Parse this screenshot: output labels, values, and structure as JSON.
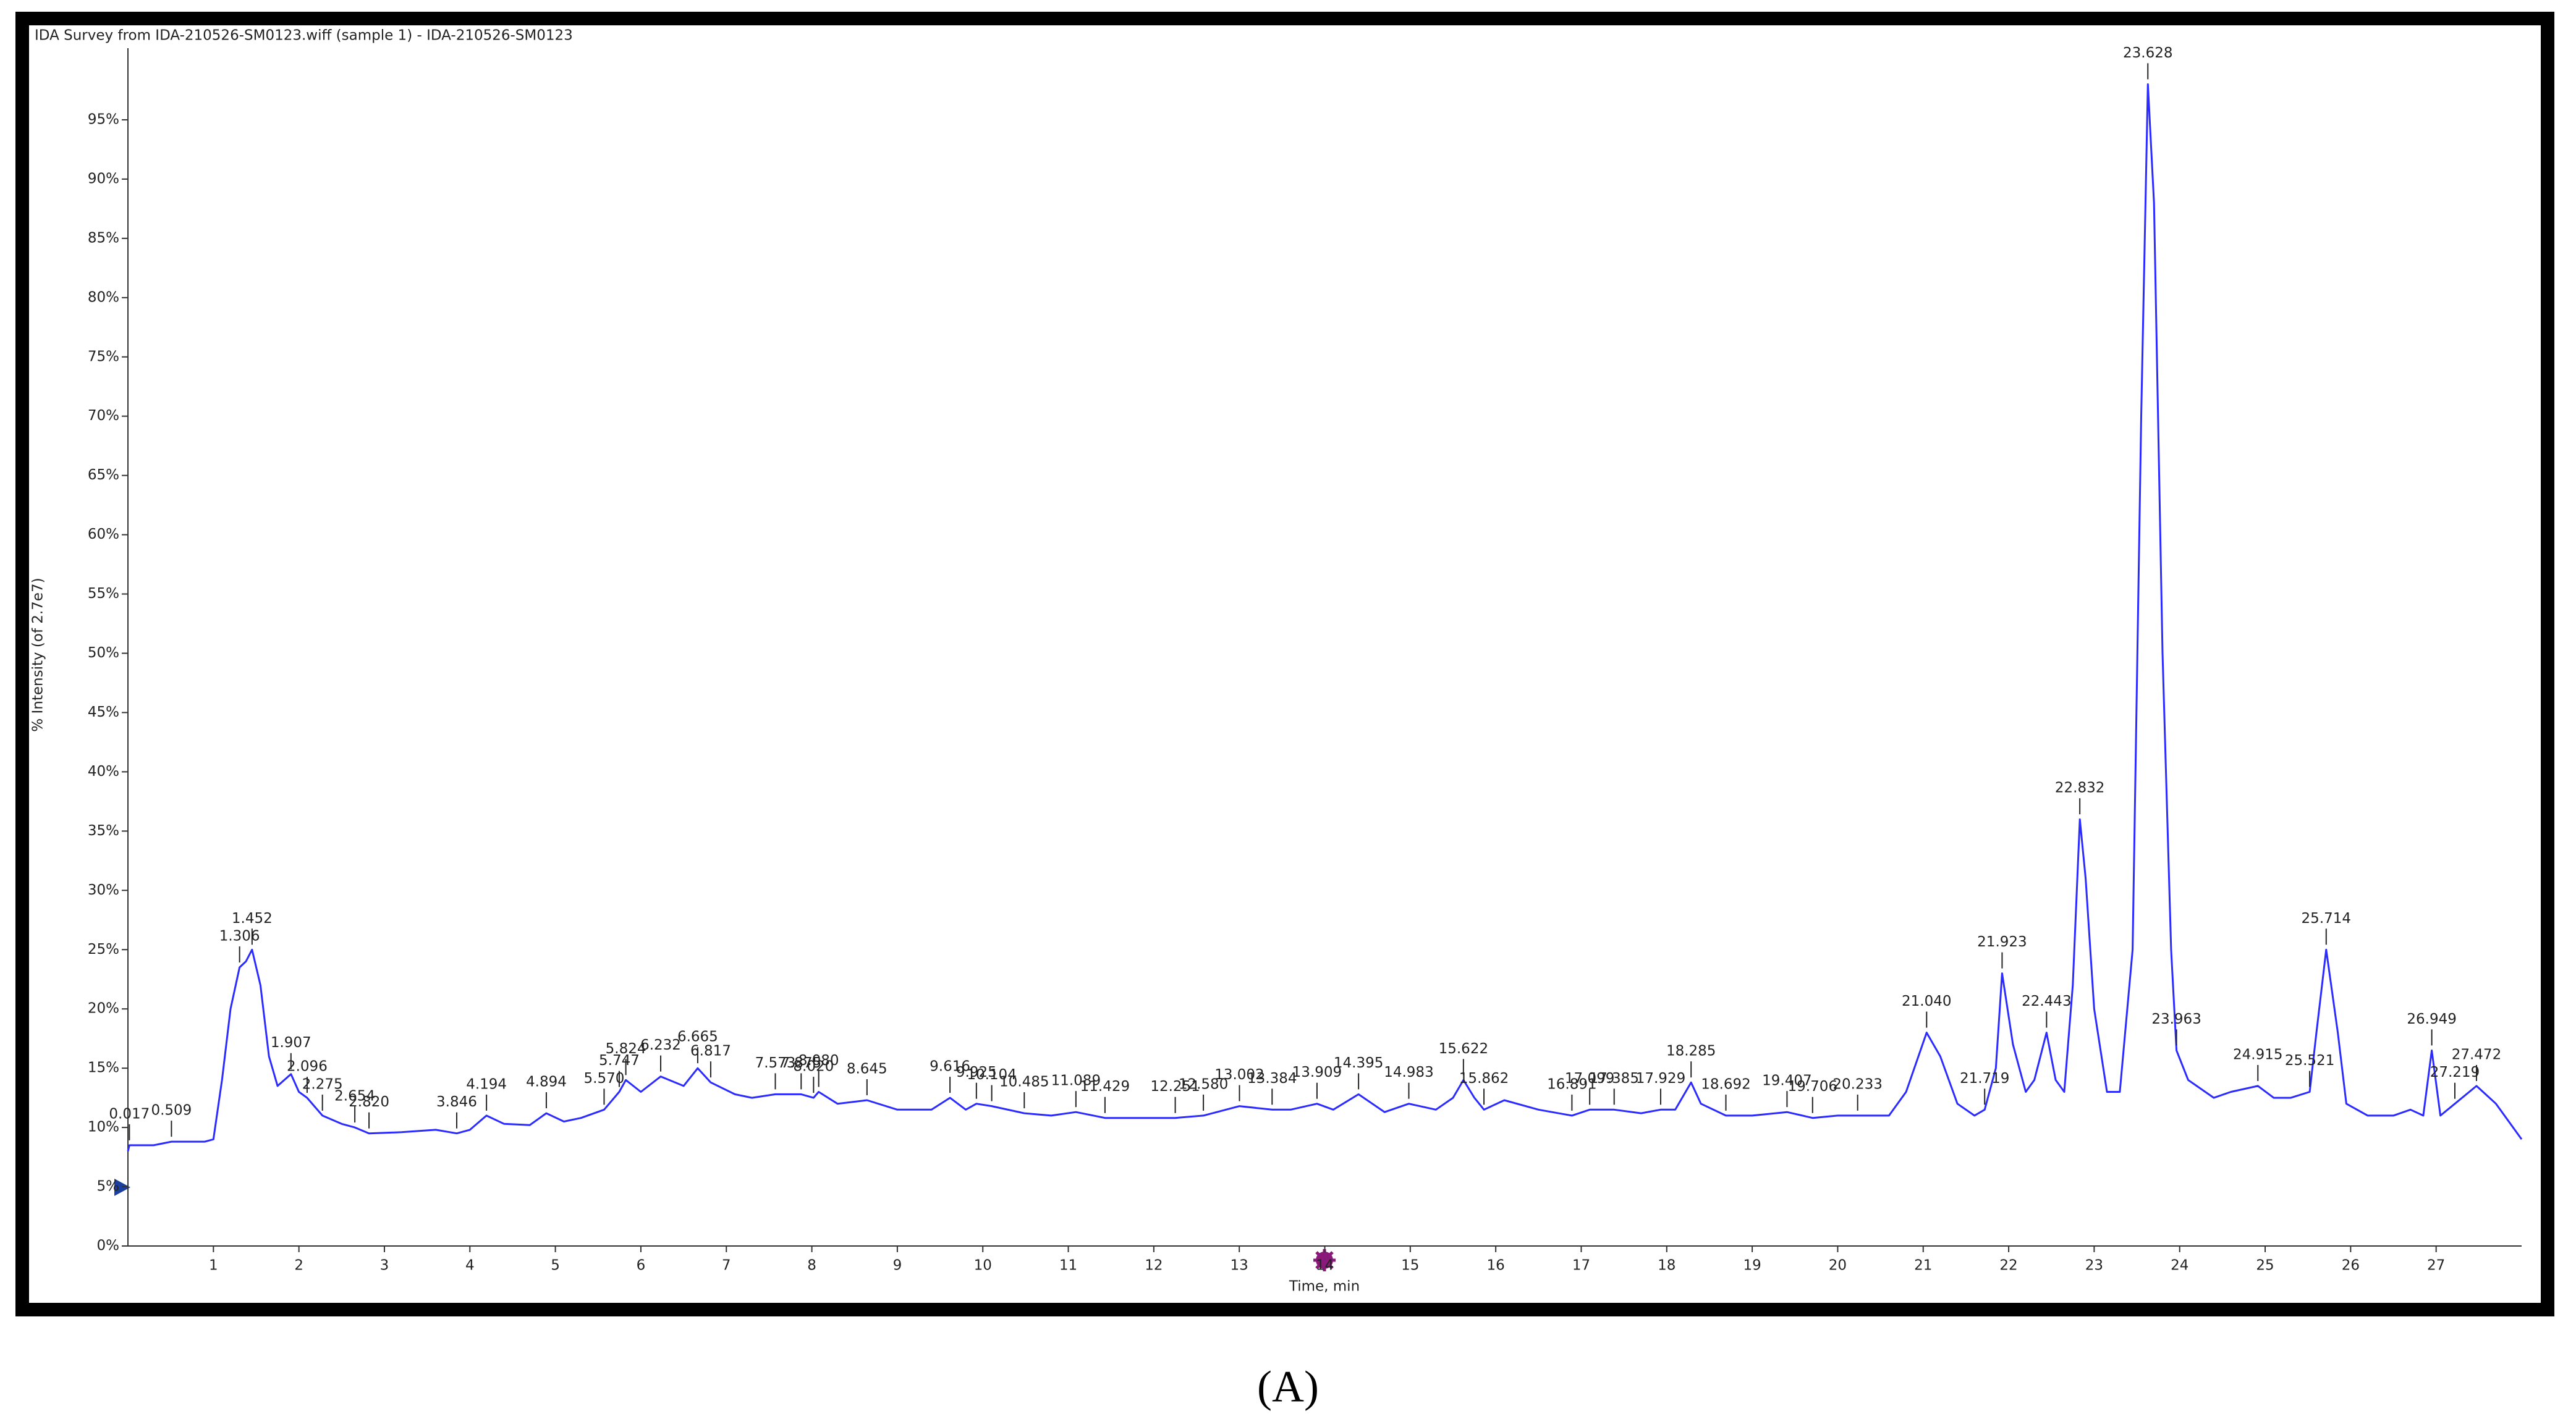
{
  "chart_data": {
    "type": "line",
    "title": "IDA Survey from IDA-210526-SM0123.wiff (sample 1) - IDA-210526-SM0123",
    "y_label": "% Intensity (of 2.7e7)",
    "x_label": "Time, min",
    "caption": "(A)",
    "color": "#2b2bff",
    "xlim": [
      0,
      28
    ],
    "ylim": [
      0,
      100
    ],
    "xticks": [
      1,
      2,
      3,
      4,
      5,
      6,
      7,
      8,
      9,
      10,
      11,
      12,
      13,
      14,
      15,
      16,
      17,
      18,
      19,
      20,
      21,
      22,
      23,
      24,
      25,
      26,
      27
    ],
    "yticks": [
      {
        "value": 0,
        "label": "0%"
      },
      {
        "value": 5,
        "label": "5%"
      },
      {
        "value": 10,
        "label": "10%"
      },
      {
        "value": 15,
        "label": "15%"
      },
      {
        "value": 20,
        "label": "20%"
      },
      {
        "value": 25,
        "label": "25%"
      },
      {
        "value": 30,
        "label": "30%"
      },
      {
        "value": 35,
        "label": "35%"
      },
      {
        "value": 40,
        "label": "40%"
      },
      {
        "value": 45,
        "label": "45%"
      },
      {
        "value": 50,
        "label": "50%"
      },
      {
        "value": 55,
        "label": "55%"
      },
      {
        "value": 60,
        "label": "60%"
      },
      {
        "value": 65,
        "label": "65%"
      },
      {
        "value": 70,
        "label": "70%"
      },
      {
        "value": 75,
        "label": "75%"
      },
      {
        "value": 80,
        "label": "80%"
      },
      {
        "value": 85,
        "label": "85%"
      },
      {
        "value": 90,
        "label": "90%"
      },
      {
        "value": 95,
        "label": "95%"
      }
    ],
    "x": [
      0,
      0.017,
      0.3,
      0.509,
      0.9,
      1.0,
      1.1,
      1.2,
      1.306,
      1.38,
      1.452,
      1.55,
      1.65,
      1.75,
      1.907,
      2.0,
      2.096,
      2.275,
      2.5,
      2.654,
      2.82,
      3.2,
      3.6,
      3.846,
      4.0,
      4.194,
      4.4,
      4.7,
      4.894,
      5.1,
      5.3,
      5.57,
      5.747,
      5.824,
      6.0,
      6.232,
      6.5,
      6.665,
      6.817,
      7.1,
      7.3,
      7.573,
      7.875,
      8.02,
      8.08,
      8.3,
      8.645,
      9.0,
      9.4,
      9.616,
      9.8,
      9.925,
      10.104,
      10.485,
      10.8,
      11.089,
      11.429,
      11.8,
      12.251,
      12.58,
      13.002,
      13.384,
      13.6,
      13.909,
      14.1,
      14.395,
      14.7,
      14.983,
      15.3,
      15.5,
      15.622,
      15.75,
      15.862,
      16.1,
      16.5,
      16.891,
      17.099,
      17.385,
      17.7,
      17.929,
      18.1,
      18.285,
      18.4,
      18.692,
      19.0,
      19.407,
      19.706,
      20.0,
      20.233,
      20.6,
      20.8,
      21.04,
      21.2,
      21.4,
      21.6,
      21.719,
      21.85,
      21.923,
      22.05,
      22.2,
      22.3,
      22.443,
      22.55,
      22.65,
      22.75,
      22.832,
      22.9,
      23.0,
      23.15,
      23.3,
      23.45,
      23.55,
      23.628,
      23.7,
      23.8,
      23.9,
      23.963,
      24.1,
      24.4,
      24.6,
      24.915,
      25.1,
      25.3,
      25.521,
      25.6,
      25.714,
      25.85,
      25.95,
      26.2,
      26.5,
      26.7,
      26.85,
      26.949,
      27.05,
      27.219,
      27.472,
      27.7,
      28
    ],
    "values": [
      8,
      8.5,
      8.5,
      8.8,
      8.8,
      9,
      14,
      20,
      23.5,
      24,
      25,
      22,
      16,
      13.5,
      14.5,
      13,
      12.5,
      11,
      10.3,
      10,
      9.5,
      9.6,
      9.8,
      9.5,
      9.8,
      11,
      10.3,
      10.2,
      11.2,
      10.5,
      10.8,
      11.5,
      13,
      14,
      13,
      14.3,
      13.5,
      15,
      13.8,
      12.8,
      12.5,
      12.8,
      12.8,
      12.5,
      13,
      12,
      12.3,
      11.5,
      11.5,
      12.5,
      11.5,
      12,
      11.8,
      11.2,
      11,
      11.3,
      10.8,
      10.8,
      10.8,
      11,
      11.8,
      11.5,
      11.5,
      12,
      11.5,
      12.8,
      11.3,
      12,
      11.5,
      12.5,
      14,
      12.5,
      11.5,
      12.3,
      11.5,
      11,
      11.5,
      11.5,
      11.2,
      11.5,
      11.5,
      13.8,
      12,
      11,
      11,
      11.3,
      10.8,
      11,
      11,
      11,
      13,
      18,
      16,
      12,
      11,
      11.5,
      15,
      23,
      17,
      13,
      14,
      18,
      14,
      13,
      22,
      36,
      31,
      20,
      13,
      13,
      25,
      70,
      98,
      88,
      50,
      25,
      16.5,
      14,
      12.5,
      13,
      13.5,
      12.5,
      12.5,
      13,
      18,
      25,
      18,
      12,
      11,
      11,
      11.5,
      11,
      16.5,
      11,
      12,
      13.5,
      12,
      9
    ],
    "annotations": [
      {
        "text": "0.017",
        "x": 0.017,
        "y": 8.5
      },
      {
        "text": "0.509",
        "x": 0.509,
        "y": 8.8
      },
      {
        "text": "1.306",
        "x": 1.306,
        "y": 23.5
      },
      {
        "text": "1.452",
        "x": 1.452,
        "y": 25
      },
      {
        "text": "1.907",
        "x": 1.907,
        "y": 14.5
      },
      {
        "text": "2.096",
        "x": 2.096,
        "y": 12.5
      },
      {
        "text": "2.275",
        "x": 2.275,
        "y": 11
      },
      {
        "text": "2.654",
        "x": 2.654,
        "y": 10
      },
      {
        "text": "2.820",
        "x": 2.82,
        "y": 9.5
      },
      {
        "text": "3.846",
        "x": 3.846,
        "y": 9.5
      },
      {
        "text": "4.194",
        "x": 4.194,
        "y": 11
      },
      {
        "text": "4.894",
        "x": 4.894,
        "y": 11.2
      },
      {
        "text": "5.570",
        "x": 5.57,
        "y": 11.5
      },
      {
        "text": "5.747",
        "x": 5.747,
        "y": 13
      },
      {
        "text": "5.824",
        "x": 5.824,
        "y": 14
      },
      {
        "text": "6.232",
        "x": 6.232,
        "y": 14.3
      },
      {
        "text": "6.665",
        "x": 6.665,
        "y": 15
      },
      {
        "text": "6.817",
        "x": 6.817,
        "y": 13.8
      },
      {
        "text": "7.573",
        "x": 7.573,
        "y": 12.8
      },
      {
        "text": "7.875",
        "x": 7.875,
        "y": 12.8
      },
      {
        "text": "8.020",
        "x": 8.02,
        "y": 12.5
      },
      {
        "text": "8.080",
        "x": 8.08,
        "y": 13
      },
      {
        "text": "8.645",
        "x": 8.645,
        "y": 12.3
      },
      {
        "text": "9.616",
        "x": 9.616,
        "y": 12.5
      },
      {
        "text": "9.925",
        "x": 9.925,
        "y": 12
      },
      {
        "text": "10.104",
        "x": 10.104,
        "y": 11.8
      },
      {
        "text": "10.485",
        "x": 10.485,
        "y": 11.2
      },
      {
        "text": "11.089",
        "x": 11.089,
        "y": 11.3
      },
      {
        "text": "11.429",
        "x": 11.429,
        "y": 10.8
      },
      {
        "text": "12.251",
        "x": 12.251,
        "y": 10.8
      },
      {
        "text": "12.580",
        "x": 12.58,
        "y": 11
      },
      {
        "text": "13.002",
        "x": 13.002,
        "y": 11.8
      },
      {
        "text": "13.384",
        "x": 13.384,
        "y": 11.5
      },
      {
        "text": "13.909",
        "x": 13.909,
        "y": 12
      },
      {
        "text": "14.395",
        "x": 14.395,
        "y": 12.8
      },
      {
        "text": "14.983",
        "x": 14.983,
        "y": 12
      },
      {
        "text": "15.622",
        "x": 15.622,
        "y": 14
      },
      {
        "text": "15.862",
        "x": 15.862,
        "y": 11.5
      },
      {
        "text": "16.891",
        "x": 16.891,
        "y": 11
      },
      {
        "text": "17.099",
        "x": 17.099,
        "y": 11.5
      },
      {
        "text": "17.385",
        "x": 17.385,
        "y": 11.5
      },
      {
        "text": "17.929",
        "x": 17.929,
        "y": 11.5
      },
      {
        "text": "18.285",
        "x": 18.285,
        "y": 13.8
      },
      {
        "text": "18.692",
        "x": 18.692,
        "y": 11
      },
      {
        "text": "19.407",
        "x": 19.407,
        "y": 11.3
      },
      {
        "text": "19.706",
        "x": 19.706,
        "y": 10.8
      },
      {
        "text": "20.233",
        "x": 20.233,
        "y": 11
      },
      {
        "text": "21.040",
        "x": 21.04,
        "y": 18
      },
      {
        "text": "21.719",
        "x": 21.719,
        "y": 11.5
      },
      {
        "text": "21.923",
        "x": 21.923,
        "y": 23
      },
      {
        "text": "22.443",
        "x": 22.443,
        "y": 18
      },
      {
        "text": "22.832",
        "x": 22.832,
        "y": 36
      },
      {
        "text": "23.628",
        "x": 23.628,
        "y": 98
      },
      {
        "text": "23.963",
        "x": 23.963,
        "y": 16.5
      },
      {
        "text": "24.915",
        "x": 24.915,
        "y": 13.5
      },
      {
        "text": "25.521",
        "x": 25.521,
        "y": 13
      },
      {
        "text": "25.714",
        "x": 25.714,
        "y": 25
      },
      {
        "text": "26.949",
        "x": 26.949,
        "y": 16.5
      },
      {
        "text": "27.219",
        "x": 27.219,
        "y": 12
      },
      {
        "text": "27.472",
        "x": 27.472,
        "y": 13.5
      }
    ]
  }
}
